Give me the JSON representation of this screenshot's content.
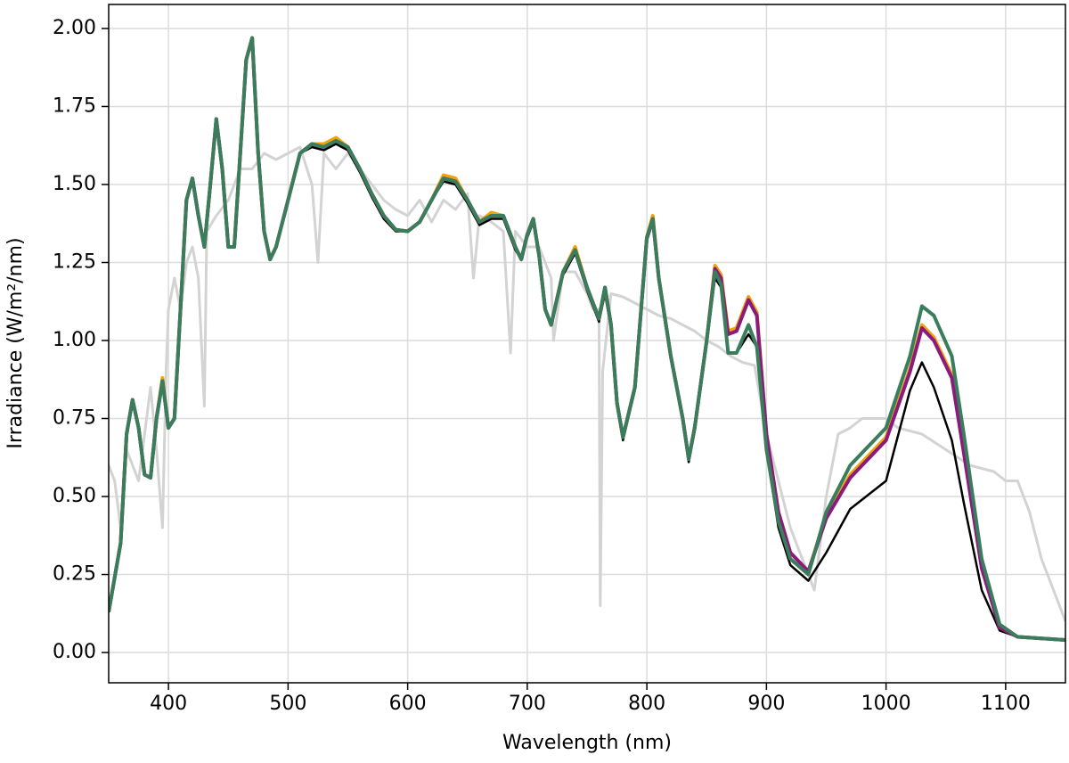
{
  "chart_data": {
    "type": "line",
    "xlabel": "Wavelength (nm)",
    "ylabel": "Irradiance (W/m²/nm)",
    "xlim": [
      350,
      1150
    ],
    "xticks": [
      400,
      500,
      600,
      700,
      800,
      900,
      1000,
      1100
    ],
    "ylim": [
      -0.097,
      2.077
    ],
    "yticks": [
      {
        "value": 0,
        "label": "0.00"
      },
      {
        "value": 0.25,
        "label": "0.25"
      },
      {
        "value": 0.5,
        "label": "0.50"
      },
      {
        "value": 0.75,
        "label": "0.75"
      },
      {
        "value": 1,
        "label": "1.00"
      },
      {
        "value": 1.25,
        "label": "1.25"
      },
      {
        "value": 1.5,
        "label": "1.50"
      },
      {
        "value": 1.75,
        "label": "1.75"
      },
      {
        "value": 2,
        "label": "2.00"
      }
    ],
    "grid": true,
    "x": [
      350,
      360,
      365,
      370,
      375,
      380,
      385,
      390,
      395,
      400,
      405,
      410,
      415,
      420,
      425,
      430,
      435,
      440,
      445,
      450,
      455,
      460,
      465,
      470,
      475,
      480,
      485,
      490,
      500,
      510,
      520,
      530,
      540,
      550,
      560,
      570,
      580,
      590,
      600,
      610,
      620,
      630,
      640,
      650,
      660,
      670,
      680,
      690,
      695,
      700,
      705,
      710,
      715,
      720,
      730,
      740,
      750,
      760,
      765,
      770,
      775,
      780,
      790,
      800,
      805,
      810,
      820,
      830,
      835,
      840,
      850,
      857,
      862,
      868,
      875,
      885,
      892,
      900,
      910,
      920,
      935,
      950,
      970,
      1000,
      1020,
      1030,
      1040,
      1055,
      1065,
      1080,
      1095,
      1110,
      1150
    ],
    "series": [
      {
        "color": "#d3d3d3",
        "x": [
          350,
          355,
          360,
          365,
          370,
          375,
          380,
          385,
          390,
          395,
          398,
          400,
          405,
          410,
          415,
          420,
          425,
          430,
          432,
          440,
          450,
          460,
          470,
          480,
          490,
          500,
          510,
          520,
          525,
          530,
          540,
          550,
          560,
          570,
          580,
          590,
          600,
          610,
          620,
          630,
          640,
          650,
          655,
          660,
          670,
          680,
          686,
          690,
          700,
          710,
          720,
          722,
          730,
          740,
          750,
          755,
          760,
          761,
          763,
          770,
          780,
          790,
          800,
          810,
          820,
          830,
          840,
          850,
          860,
          870,
          880,
          890,
          900,
          910,
          920,
          930,
          940,
          950,
          960,
          970,
          980,
          1000,
          1010,
          1030,
          1050,
          1070,
          1090,
          1100,
          1110,
          1120,
          1130,
          1140,
          1150
        ],
        "values": [
          0.6,
          0.55,
          0.4,
          0.65,
          0.6,
          0.55,
          0.7,
          0.85,
          0.65,
          0.4,
          0.9,
          1.1,
          1.2,
          1.1,
          1.25,
          1.3,
          1.2,
          0.79,
          1.35,
          1.4,
          1.45,
          1.55,
          1.55,
          1.6,
          1.58,
          1.6,
          1.62,
          1.5,
          1.25,
          1.6,
          1.55,
          1.6,
          1.55,
          1.5,
          1.45,
          1.42,
          1.4,
          1.45,
          1.38,
          1.45,
          1.42,
          1.47,
          1.2,
          1.4,
          1.38,
          1.35,
          0.96,
          1.35,
          1.3,
          1.3,
          1.2,
          1.0,
          1.22,
          1.22,
          1.15,
          1.1,
          1.1,
          0.15,
          0.9,
          1.15,
          1.14,
          1.12,
          1.1,
          1.08,
          1.07,
          1.05,
          1.03,
          1.0,
          0.98,
          0.95,
          0.93,
          0.92,
          0.7,
          0.55,
          0.4,
          0.3,
          0.2,
          0.5,
          0.7,
          0.72,
          0.75,
          0.75,
          0.72,
          0.7,
          0.65,
          0.6,
          0.58,
          0.55,
          0.55,
          0.45,
          0.3,
          0.2,
          0.1
        ]
      },
      {
        "color": "#000000",
        "values": [
          0.13,
          0.35,
          0.7,
          0.81,
          0.72,
          0.57,
          0.56,
          0.75,
          0.87,
          0.72,
          0.75,
          1.1,
          1.45,
          1.52,
          1.4,
          1.3,
          1.5,
          1.71,
          1.55,
          1.3,
          1.3,
          1.6,
          1.9,
          1.97,
          1.6,
          1.35,
          1.26,
          1.3,
          1.45,
          1.6,
          1.62,
          1.61,
          1.63,
          1.61,
          1.54,
          1.46,
          1.39,
          1.35,
          1.35,
          1.38,
          1.45,
          1.51,
          1.5,
          1.44,
          1.37,
          1.39,
          1.39,
          1.29,
          1.26,
          1.33,
          1.38,
          1.26,
          1.1,
          1.05,
          1.21,
          1.28,
          1.16,
          1.06,
          1.15,
          1.04,
          0.8,
          0.68,
          0.84,
          1.32,
          1.38,
          1.2,
          0.95,
          0.74,
          0.61,
          0.71,
          0.99,
          1.2,
          1.17,
          0.96,
          0.96,
          1.02,
          0.98,
          0.65,
          0.4,
          0.28,
          0.23,
          0.32,
          0.46,
          0.55,
          0.84,
          0.93,
          0.85,
          0.68,
          0.48,
          0.2,
          0.07,
          0.05,
          0.04
        ]
      },
      {
        "color": "#f0a30a",
        "values": [
          0.13,
          0.35,
          0.7,
          0.81,
          0.72,
          0.57,
          0.56,
          0.75,
          0.88,
          0.72,
          0.75,
          1.1,
          1.45,
          1.52,
          1.4,
          1.3,
          1.5,
          1.71,
          1.55,
          1.3,
          1.3,
          1.6,
          1.9,
          1.97,
          1.6,
          1.35,
          1.26,
          1.3,
          1.45,
          1.6,
          1.63,
          1.63,
          1.65,
          1.62,
          1.55,
          1.47,
          1.4,
          1.355,
          1.35,
          1.38,
          1.45,
          1.53,
          1.52,
          1.45,
          1.38,
          1.41,
          1.4,
          1.3,
          1.26,
          1.34,
          1.39,
          1.27,
          1.1,
          1.05,
          1.22,
          1.3,
          1.17,
          1.07,
          1.17,
          1.05,
          0.8,
          0.69,
          0.85,
          1.33,
          1.4,
          1.2,
          0.95,
          0.75,
          0.62,
          0.72,
          1.0,
          1.24,
          1.21,
          1.03,
          1.04,
          1.14,
          1.09,
          0.7,
          0.45,
          0.32,
          0.26,
          0.44,
          0.57,
          0.69,
          0.91,
          1.05,
          1.01,
          0.89,
          0.65,
          0.27,
          0.08,
          0.05,
          0.04
        ]
      },
      {
        "color": "#8b1a7f",
        "values": [
          0.13,
          0.35,
          0.7,
          0.81,
          0.72,
          0.57,
          0.56,
          0.75,
          0.87,
          0.72,
          0.75,
          1.1,
          1.45,
          1.52,
          1.4,
          1.3,
          1.5,
          1.71,
          1.55,
          1.3,
          1.3,
          1.6,
          1.9,
          1.97,
          1.6,
          1.35,
          1.26,
          1.3,
          1.45,
          1.6,
          1.63,
          1.62,
          1.64,
          1.62,
          1.55,
          1.47,
          1.4,
          1.355,
          1.35,
          1.38,
          1.45,
          1.52,
          1.51,
          1.45,
          1.38,
          1.4,
          1.4,
          1.3,
          1.26,
          1.34,
          1.39,
          1.27,
          1.1,
          1.05,
          1.22,
          1.29,
          1.17,
          1.07,
          1.17,
          1.05,
          0.8,
          0.69,
          0.85,
          1.33,
          1.39,
          1.2,
          0.95,
          0.75,
          0.62,
          0.72,
          1.0,
          1.23,
          1.2,
          1.02,
          1.03,
          1.13,
          1.08,
          0.7,
          0.45,
          0.32,
          0.26,
          0.43,
          0.56,
          0.68,
          0.9,
          1.04,
          1.0,
          0.88,
          0.64,
          0.27,
          0.08,
          0.05,
          0.04
        ]
      },
      {
        "color": "#3a7d5c",
        "values": [
          0.13,
          0.35,
          0.7,
          0.81,
          0.72,
          0.57,
          0.56,
          0.75,
          0.87,
          0.72,
          0.75,
          1.1,
          1.45,
          1.52,
          1.4,
          1.3,
          1.5,
          1.71,
          1.55,
          1.3,
          1.3,
          1.6,
          1.9,
          1.97,
          1.6,
          1.35,
          1.26,
          1.3,
          1.45,
          1.6,
          1.63,
          1.62,
          1.64,
          1.62,
          1.55,
          1.47,
          1.4,
          1.355,
          1.35,
          1.38,
          1.45,
          1.52,
          1.51,
          1.45,
          1.38,
          1.4,
          1.4,
          1.3,
          1.26,
          1.34,
          1.39,
          1.27,
          1.1,
          1.05,
          1.22,
          1.29,
          1.17,
          1.07,
          1.17,
          1.05,
          0.8,
          0.69,
          0.85,
          1.33,
          1.39,
          1.2,
          0.95,
          0.75,
          0.62,
          0.72,
          1.0,
          1.22,
          1.18,
          0.96,
          0.96,
          1.05,
          0.98,
          0.65,
          0.42,
          0.3,
          0.25,
          0.45,
          0.6,
          0.72,
          0.95,
          1.11,
          1.08,
          0.95,
          0.7,
          0.3,
          0.09,
          0.05,
          0.04
        ]
      }
    ]
  }
}
